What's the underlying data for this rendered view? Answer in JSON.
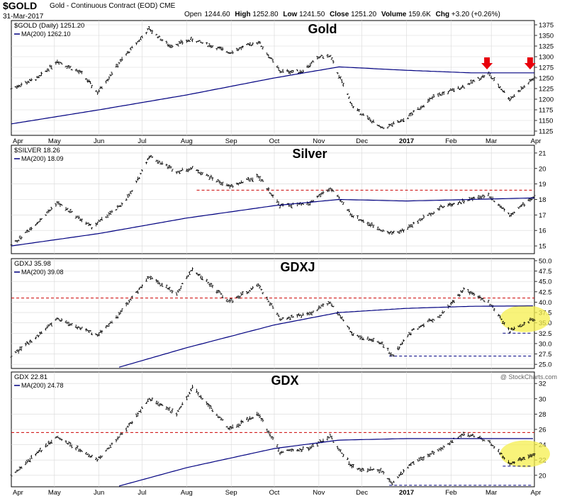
{
  "header": {
    "symbol": "$GOLD",
    "description": "Gold - Continuous Contract (EOD)",
    "exchange": "CME",
    "date": "31-Mar-2017",
    "open_label": "Open",
    "open": "1244.60",
    "high_label": "High",
    "high": "1252.80",
    "low_label": "Low",
    "low": "1241.50",
    "close_label": "Close",
    "close": "1251.20",
    "volume_label": "Volume",
    "volume": "159.6K",
    "chg_label": "Chg",
    "chg": "+3.20 (+0.26%)",
    "watermark": "@ StockCharts.com"
  },
  "colors": {
    "bars": "#000000",
    "moving_average": "#000080",
    "resistance_line": "#cc0000",
    "support_line": "#000080",
    "highlight": "#f5ef4e",
    "arrow": "#e8000b",
    "grid": "#d8d8d8"
  },
  "x_axis": {
    "months": [
      "Apr",
      "May",
      "Jun",
      "Jul",
      "Aug",
      "Sep",
      "Oct",
      "Nov",
      "Dec",
      "2017",
      "Feb",
      "Mar",
      "Apr"
    ],
    "range": [
      "2016-04-01",
      "2017-03-31"
    ]
  },
  "chart_data": [
    {
      "type": "ohlc",
      "title": "Gold",
      "legend": [
        "$GOLD (Daily) 1251.20",
        "MA(200) 1262.10"
      ],
      "yticks": [
        1125,
        1150,
        1175,
        1200,
        1225,
        1250,
        1275,
        1300,
        1325,
        1350,
        1375
      ],
      "ylim": [
        1115,
        1385
      ],
      "series": [
        {
          "name": "$GOLD (Daily)",
          "x": [
            "2016-04-01",
            "2016-04-20",
            "2016-05-03",
            "2016-05-20",
            "2016-05-31",
            "2016-06-15",
            "2016-06-24",
            "2016-07-06",
            "2016-07-20",
            "2016-08-05",
            "2016-08-31",
            "2016-09-20",
            "2016-10-05",
            "2016-10-20",
            "2016-11-02",
            "2016-11-09",
            "2016-11-25",
            "2016-12-15",
            "2016-12-30",
            "2017-01-20",
            "2017-02-10",
            "2017-02-27",
            "2017-03-14",
            "2017-03-31"
          ],
          "values": [
            1225,
            1250,
            1290,
            1260,
            1215,
            1285,
            1320,
            1365,
            1325,
            1340,
            1310,
            1335,
            1265,
            1265,
            1300,
            1300,
            1180,
            1130,
            1150,
            1205,
            1230,
            1260,
            1200,
            1250
          ]
        },
        {
          "name": "MA(200)",
          "x": [
            "2016-04-01",
            "2016-06-01",
            "2016-08-01",
            "2016-10-01",
            "2016-11-15",
            "2017-01-01",
            "2017-02-15",
            "2017-03-31"
          ],
          "values": [
            1142,
            1175,
            1210,
            1250,
            1276,
            1268,
            1262,
            1262
          ]
        }
      ],
      "annotations": {
        "arrows_at": [
          "2017-02-27",
          "2017-03-29"
        ]
      }
    },
    {
      "type": "ohlc",
      "title": "Silver",
      "legend": [
        "$SILVER 18.26",
        "MA(200) 18.09"
      ],
      "yticks": [
        15,
        16,
        17,
        18,
        19,
        20,
        21
      ],
      "ylim": [
        14.5,
        21.5
      ],
      "series": [
        {
          "name": "$SILVER",
          "x": [
            "2016-04-01",
            "2016-04-25",
            "2016-05-03",
            "2016-05-27",
            "2016-06-15",
            "2016-06-24",
            "2016-07-06",
            "2016-07-25",
            "2016-08-05",
            "2016-08-31",
            "2016-09-20",
            "2016-10-05",
            "2016-10-25",
            "2016-11-02",
            "2016-11-09",
            "2016-11-25",
            "2016-12-20",
            "2016-12-30",
            "2017-01-25",
            "2017-02-27",
            "2017-03-14",
            "2017-03-31"
          ],
          "values": [
            15.0,
            17.0,
            17.8,
            16.2,
            17.5,
            18.5,
            20.8,
            19.8,
            20.0,
            18.8,
            19.5,
            17.6,
            17.7,
            18.3,
            18.7,
            16.9,
            15.8,
            16.0,
            17.5,
            18.3,
            17.0,
            18.2
          ]
        },
        {
          "name": "MA(200)",
          "x": [
            "2016-04-01",
            "2016-06-01",
            "2016-08-01",
            "2016-10-01",
            "2016-11-15",
            "2017-01-01",
            "2017-02-15",
            "2017-03-31"
          ],
          "values": [
            15.0,
            15.8,
            16.8,
            17.6,
            18.0,
            17.9,
            18.0,
            18.1
          ]
        }
      ],
      "annotations": {
        "resistance": {
          "value": 18.6,
          "from": "2016-08-08",
          "to": "2017-03-31"
        }
      }
    },
    {
      "type": "ohlc",
      "title": "GDXJ",
      "legend": [
        "GDXJ 35.98",
        "MA(200) 39.08"
      ],
      "yticks": [
        25.0,
        27.5,
        30.0,
        32.5,
        35.0,
        37.5,
        40.0,
        42.5,
        45.0,
        47.5,
        50.0
      ],
      "ylim": [
        24.0,
        50.5
      ],
      "series": [
        {
          "name": "GDXJ",
          "x": [
            "2016-04-01",
            "2016-04-20",
            "2016-05-03",
            "2016-05-31",
            "2016-06-15",
            "2016-06-24",
            "2016-07-06",
            "2016-07-25",
            "2016-08-05",
            "2016-08-31",
            "2016-09-20",
            "2016-10-05",
            "2016-10-25",
            "2016-11-09",
            "2016-11-25",
            "2016-12-15",
            "2016-12-22",
            "2017-01-05",
            "2017-01-25",
            "2017-02-10",
            "2017-02-27",
            "2017-03-14",
            "2017-03-31"
          ],
          "values": [
            27,
            32,
            36,
            32,
            37,
            41,
            46,
            42,
            48,
            40,
            44,
            36,
            37,
            40,
            32,
            30,
            27,
            33,
            37,
            43,
            40,
            33,
            36
          ]
        },
        {
          "name": "MA(200)",
          "x": [
            "2016-06-15",
            "2016-08-01",
            "2016-10-01",
            "2016-11-15",
            "2017-01-01",
            "2017-02-15",
            "2017-03-31"
          ],
          "values": [
            24.3,
            29,
            34.5,
            37.5,
            38.5,
            39.0,
            39.1
          ]
        }
      ],
      "annotations": {
        "resistance": {
          "value": 41.0
        },
        "support": [
          {
            "value": 32.5,
            "from": "2017-03-09"
          },
          {
            "value": 27.0,
            "from": "2016-12-20"
          }
        ],
        "highlight_from": "2017-03-14"
      }
    },
    {
      "type": "ohlc",
      "title": "GDX",
      "legend": [
        "GDX 22.81",
        "MA(200) 24.78"
      ],
      "yticks": [
        20,
        22,
        24,
        26,
        28,
        30,
        32
      ],
      "ylim": [
        18.5,
        33.5
      ],
      "series": [
        {
          "name": "GDX",
          "x": [
            "2016-04-01",
            "2016-04-20",
            "2016-05-03",
            "2016-05-31",
            "2016-06-15",
            "2016-06-24",
            "2016-07-06",
            "2016-07-25",
            "2016-08-05",
            "2016-08-31",
            "2016-09-20",
            "2016-10-05",
            "2016-10-25",
            "2016-11-09",
            "2016-11-25",
            "2016-12-15",
            "2016-12-22",
            "2017-01-05",
            "2017-01-25",
            "2017-02-10",
            "2017-02-27",
            "2017-03-14",
            "2017-03-31"
          ],
          "values": [
            20,
            23,
            25,
            22,
            25,
            27,
            30,
            28,
            31.5,
            26,
            28,
            23,
            23.5,
            25,
            21,
            20.5,
            19,
            21.5,
            23.5,
            25.5,
            24.5,
            21.5,
            22.8
          ]
        },
        {
          "name": "MA(200)",
          "x": [
            "2016-06-15",
            "2016-08-01",
            "2016-10-01",
            "2016-11-15",
            "2017-01-01",
            "2017-02-15",
            "2017-03-31"
          ],
          "values": [
            18.6,
            21,
            23.5,
            24.6,
            24.8,
            24.8,
            24.8
          ]
        }
      ],
      "annotations": {
        "resistance": {
          "value": 25.6
        },
        "support": [
          {
            "value": 21.2,
            "from": "2017-03-09"
          },
          {
            "value": 18.7,
            "from": "2016-12-20"
          }
        ],
        "highlight_from": "2017-03-14"
      }
    }
  ]
}
